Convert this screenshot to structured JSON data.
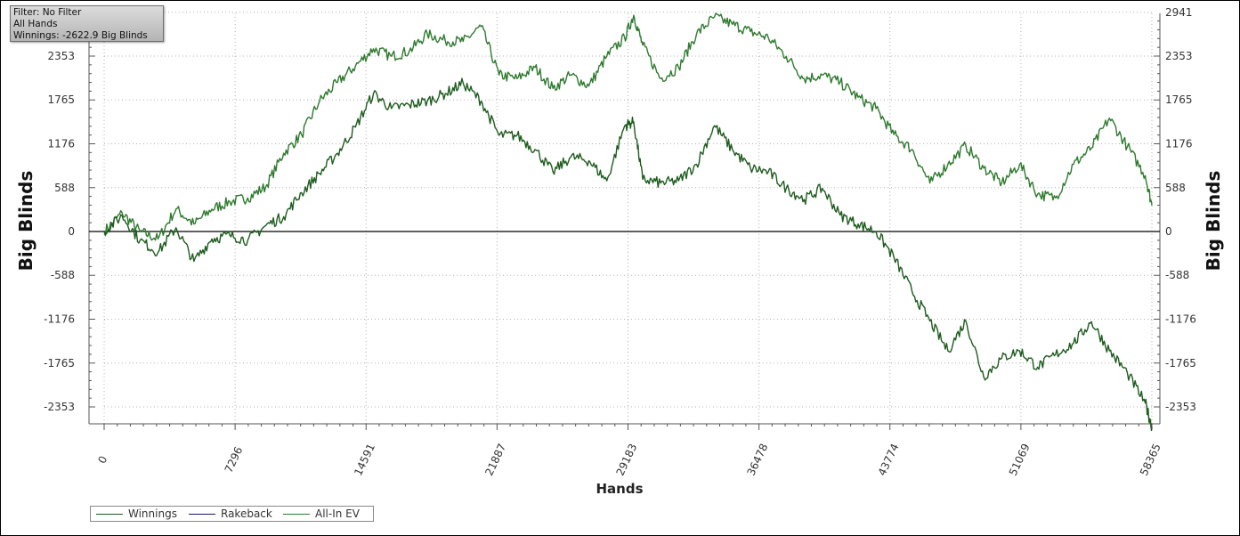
{
  "info": {
    "filter": "Filter: No Filter",
    "hands": "All Hands",
    "winnings": "Winnings: -2622.9 Big Blinds"
  },
  "colors": {
    "winnings": "#1e5c1e",
    "rakeback": "#1a1a66",
    "allin_ev": "#2e7a2e",
    "grid": "#b0b0b0",
    "zero_line": "#000000"
  },
  "legend": [
    {
      "label": "Winnings",
      "color": "#1e5c1e"
    },
    {
      "label": "Rakeback",
      "color": "#1a1a66"
    },
    {
      "label": "All-In EV",
      "color": "#2e7a2e"
    }
  ],
  "chart_data": {
    "type": "line",
    "title": "",
    "xlabel": "Hands",
    "ylabel": "Big Blinds",
    "ylabel_right": "Big Blinds",
    "xlim": [
      0,
      58365
    ],
    "ylim": [
      -2600,
      2941
    ],
    "x_ticks": [
      0,
      7296,
      14591,
      21887,
      29183,
      36478,
      43774,
      51069,
      58365
    ],
    "x_tick_labels": [
      "0",
      "7296",
      "14591",
      "21887",
      "29183",
      "36478",
      "43774",
      "51069",
      "58365"
    ],
    "y_ticks": [
      -2353,
      -1765,
      -1176,
      -588,
      0,
      588,
      1176,
      1765,
      2353
    ],
    "y_tick_labels": [
      "-2353",
      "-1765",
      "-1176",
      "-588",
      "0",
      "588",
      "1176",
      "1765",
      "2353"
    ],
    "y_ticks_right": [
      -2353,
      -1765,
      -1176,
      -588,
      0,
      588,
      1176,
      1765,
      2353,
      2941
    ],
    "y_tick_labels_right": [
      "-2353",
      "-1765",
      "-1176",
      "-588",
      "0",
      "588",
      "1176",
      "1765",
      "2353",
      "2941"
    ],
    "grid": true,
    "legend_position": "bottom-left",
    "series": [
      {
        "name": "Winnings",
        "x": [
          0,
          1000,
          2000,
          3000,
          4000,
          5000,
          6000,
          7000,
          8000,
          9000,
          10000,
          11000,
          12000,
          13000,
          14000,
          15000,
          16000,
          17000,
          18000,
          19000,
          20000,
          21000,
          22000,
          23000,
          24000,
          25000,
          26000,
          27000,
          28000,
          29000,
          29500,
          30000,
          31000,
          32000,
          33000,
          34000,
          35000,
          36000,
          37000,
          38000,
          39000,
          40000,
          41000,
          42000,
          43000,
          44000,
          45000,
          46000,
          47000,
          48000,
          49000,
          50000,
          51000,
          52000,
          53000,
          54000,
          55000,
          56000,
          57000,
          58000,
          58365
        ],
        "y": [
          0,
          210,
          -120,
          -280,
          50,
          -400,
          -100,
          -50,
          -120,
          80,
          200,
          520,
          780,
          1050,
          1400,
          1850,
          1650,
          1700,
          1750,
          1850,
          1990,
          1750,
          1290,
          1290,
          1100,
          800,
          1000,
          950,
          680,
          1420,
          1470,
          700,
          650,
          680,
          900,
          1420,
          1100,
          850,
          800,
          580,
          430,
          580,
          220,
          100,
          0,
          -350,
          -800,
          -1200,
          -1600,
          -1200,
          -1950,
          -1700,
          -1600,
          -1820,
          -1650,
          -1500,
          -1210,
          -1600,
          -1900,
          -2300,
          -2623
        ]
      },
      {
        "name": "Rakeback",
        "x": [],
        "y": []
      },
      {
        "name": "All-In EV",
        "x": [
          0,
          1000,
          2000,
          3000,
          4000,
          5000,
          6000,
          7000,
          8000,
          9000,
          10000,
          11000,
          12000,
          13000,
          14000,
          15000,
          16000,
          17000,
          18000,
          19000,
          20000,
          21000,
          22000,
          23000,
          24000,
          25000,
          26000,
          27000,
          28000,
          29000,
          29500,
          30000,
          31000,
          32000,
          33000,
          34000,
          35000,
          36000,
          37000,
          38000,
          39000,
          40000,
          41000,
          42000,
          43000,
          44000,
          45000,
          46000,
          47000,
          48000,
          49000,
          50000,
          51000,
          52000,
          53000,
          54000,
          55000,
          56000,
          57000,
          58000,
          58365
        ],
        "y": [
          0,
          250,
          0,
          -100,
          300,
          100,
          300,
          400,
          450,
          600,
          1050,
          1300,
          1750,
          2000,
          2220,
          2450,
          2350,
          2420,
          2650,
          2560,
          2550,
          2750,
          2100,
          2050,
          2200,
          1920,
          2100,
          1950,
          2350,
          2600,
          2900,
          2500,
          2050,
          2200,
          2650,
          2880,
          2780,
          2680,
          2600,
          2350,
          2050,
          2100,
          2000,
          1800,
          1650,
          1300,
          1100,
          650,
          900,
          1150,
          850,
          650,
          900,
          500,
          450,
          900,
          1120,
          1520,
          1140,
          750,
          350
        ]
      }
    ]
  }
}
